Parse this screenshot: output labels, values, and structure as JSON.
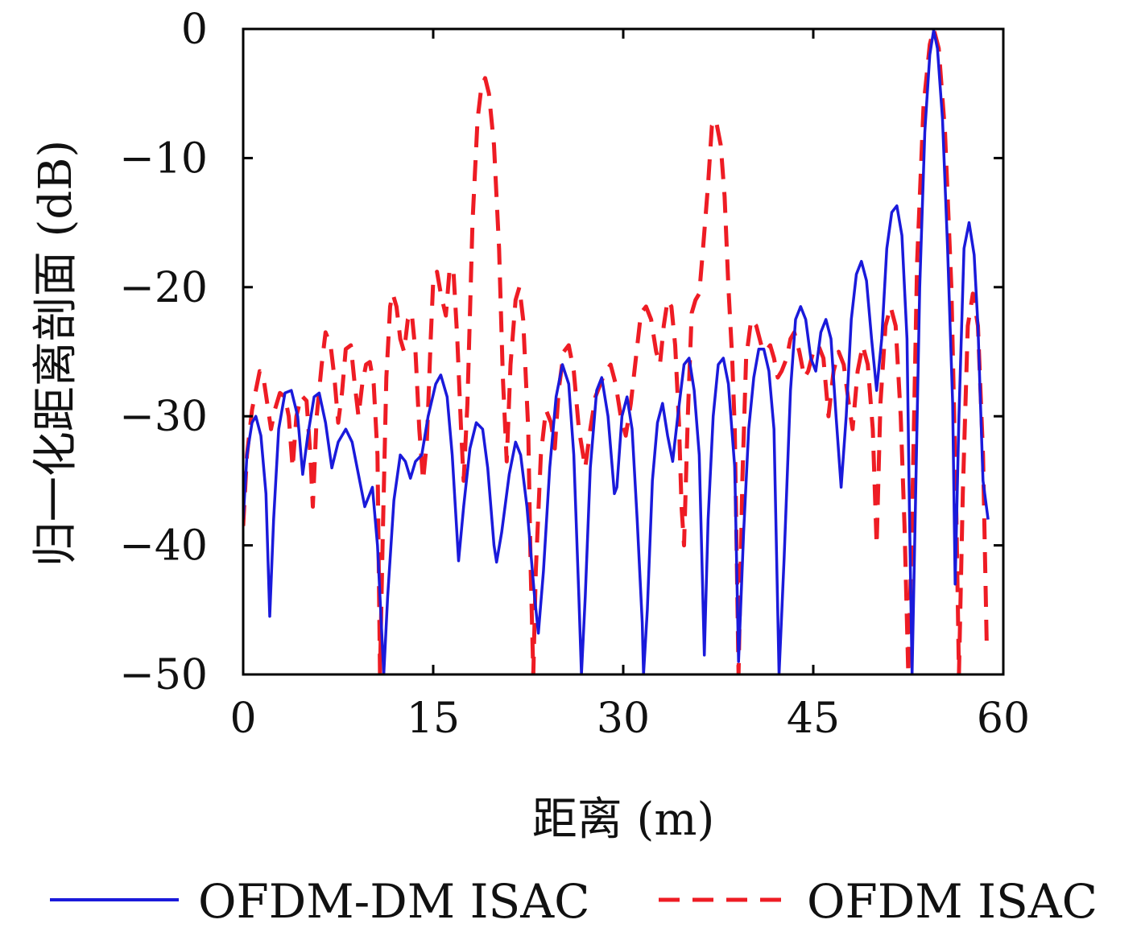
{
  "chart_data": {
    "type": "line",
    "xlabel": "距离 (m)",
    "ylabel": "归一化距离剖面 (dB)",
    "xlim": [
      0,
      60
    ],
    "ylim": [
      -50,
      0
    ],
    "x_ticks": [
      0,
      15,
      30,
      45,
      60
    ],
    "y_ticks": [
      0,
      -10,
      -20,
      -30,
      -40,
      -50
    ],
    "x_tick_labels": [
      "0",
      "15",
      "30",
      "45",
      "60"
    ],
    "y_tick_labels": [
      "0",
      "−10",
      "−20",
      "−30",
      "−40",
      "−50"
    ],
    "grid": false,
    "legend_position": "bottom",
    "series": [
      {
        "name": "OFDM-DM ISAC",
        "color": "#1a1adb",
        "style": "solid",
        "points": [
          [
            0,
            -38
          ],
          [
            0.3,
            -33
          ],
          [
            0.7,
            -30.5
          ],
          [
            1.0,
            -30
          ],
          [
            1.4,
            -31.5
          ],
          [
            1.8,
            -36
          ],
          [
            2.1,
            -45.5
          ],
          [
            2.4,
            -38
          ],
          [
            2.8,
            -31
          ],
          [
            3.3,
            -28.2
          ],
          [
            3.8,
            -28
          ],
          [
            4.3,
            -30
          ],
          [
            4.7,
            -34.5
          ],
          [
            5.1,
            -31.5
          ],
          [
            5.6,
            -28.5
          ],
          [
            6.0,
            -28.2
          ],
          [
            6.5,
            -30.5
          ],
          [
            7.0,
            -34
          ],
          [
            7.5,
            -32
          ],
          [
            8.1,
            -31
          ],
          [
            8.6,
            -32
          ],
          [
            9.2,
            -35
          ],
          [
            9.6,
            -37
          ],
          [
            10.2,
            -35.5
          ],
          [
            10.6,
            -40
          ],
          [
            10.9,
            -46
          ],
          [
            11.1,
            -50
          ],
          [
            11.4,
            -44
          ],
          [
            11.9,
            -36.5
          ],
          [
            12.4,
            -33
          ],
          [
            12.8,
            -33.5
          ],
          [
            13.2,
            -34.8
          ],
          [
            13.6,
            -33.5
          ],
          [
            14.1,
            -33
          ],
          [
            14.6,
            -30
          ],
          [
            15.2,
            -27.5
          ],
          [
            15.6,
            -26.8
          ],
          [
            16.1,
            -28.5
          ],
          [
            16.5,
            -33
          ],
          [
            17.0,
            -41.2
          ],
          [
            17.4,
            -37
          ],
          [
            17.9,
            -32.5
          ],
          [
            18.4,
            -30.5
          ],
          [
            18.9,
            -31
          ],
          [
            19.3,
            -34
          ],
          [
            19.8,
            -40
          ],
          [
            20.0,
            -41.3
          ],
          [
            20.4,
            -39
          ],
          [
            21.0,
            -34.5
          ],
          [
            21.5,
            -32
          ],
          [
            21.9,
            -33
          ],
          [
            22.4,
            -37
          ],
          [
            23.0,
            -44
          ],
          [
            23.3,
            -46.8
          ],
          [
            23.7,
            -42
          ],
          [
            24.2,
            -34
          ],
          [
            24.7,
            -28.5
          ],
          [
            25.2,
            -26
          ],
          [
            25.7,
            -27.5
          ],
          [
            26.1,
            -33
          ],
          [
            26.5,
            -44
          ],
          [
            26.7,
            -50
          ],
          [
            27.0,
            -44
          ],
          [
            27.4,
            -34
          ],
          [
            27.9,
            -28
          ],
          [
            28.3,
            -27
          ],
          [
            28.8,
            -30
          ],
          [
            29.3,
            -36
          ],
          [
            29.5,
            -35.5
          ],
          [
            29.9,
            -30
          ],
          [
            30.3,
            -28.5
          ],
          [
            30.7,
            -31
          ],
          [
            31.1,
            -38
          ],
          [
            31.5,
            -46
          ],
          [
            31.6,
            -50
          ],
          [
            31.9,
            -45
          ],
          [
            32.3,
            -35
          ],
          [
            32.7,
            -30.5
          ],
          [
            33.1,
            -29
          ],
          [
            33.5,
            -31.5
          ],
          [
            33.9,
            -33.5
          ],
          [
            34.3,
            -30
          ],
          [
            34.8,
            -26
          ],
          [
            35.2,
            -25.5
          ],
          [
            35.6,
            -28
          ],
          [
            36.0,
            -33
          ],
          [
            36.4,
            -48.5
          ],
          [
            36.7,
            -38
          ],
          [
            37.1,
            -30
          ],
          [
            37.5,
            -26
          ],
          [
            37.9,
            -25.5
          ],
          [
            38.3,
            -27.5
          ],
          [
            38.8,
            -34
          ],
          [
            39.1,
            -49
          ],
          [
            39.5,
            -39
          ],
          [
            39.9,
            -31
          ],
          [
            40.3,
            -27
          ],
          [
            40.7,
            -24.8
          ],
          [
            41.1,
            -24.8
          ],
          [
            41.5,
            -26.5
          ],
          [
            41.9,
            -31
          ],
          [
            42.3,
            -50
          ],
          [
            42.7,
            -41
          ],
          [
            43.2,
            -28
          ],
          [
            43.6,
            -22.5
          ],
          [
            44.0,
            -21.5
          ],
          [
            44.4,
            -22.5
          ],
          [
            44.8,
            -25.5
          ],
          [
            45.2,
            -26.5
          ],
          [
            45.6,
            -23.5
          ],
          [
            46.0,
            -22.5
          ],
          [
            46.4,
            -24
          ],
          [
            46.8,
            -30
          ],
          [
            47.2,
            -35.5
          ],
          [
            47.6,
            -30
          ],
          [
            48.0,
            -22.5
          ],
          [
            48.4,
            -19
          ],
          [
            48.8,
            -18
          ],
          [
            49.2,
            -19.5
          ],
          [
            49.6,
            -24
          ],
          [
            50.0,
            -28
          ],
          [
            50.4,
            -24
          ],
          [
            50.8,
            -17
          ],
          [
            51.2,
            -14.2
          ],
          [
            51.6,
            -13.7
          ],
          [
            52.0,
            -16
          ],
          [
            52.4,
            -24
          ],
          [
            52.6,
            -38
          ],
          [
            52.8,
            -50
          ],
          [
            53.0,
            -40
          ],
          [
            53.4,
            -20
          ],
          [
            53.8,
            -8
          ],
          [
            54.2,
            -2
          ],
          [
            54.5,
            -0.1
          ],
          [
            54.8,
            -1.5
          ],
          [
            55.2,
            -7
          ],
          [
            55.6,
            -17
          ],
          [
            56.0,
            -29
          ],
          [
            56.2,
            -43
          ],
          [
            56.5,
            -30
          ],
          [
            56.9,
            -17
          ],
          [
            57.3,
            -15
          ],
          [
            57.7,
            -17.5
          ],
          [
            58.0,
            -23
          ],
          [
            58.4,
            -35
          ],
          [
            58.8,
            -38
          ]
        ]
      },
      {
        "name": "OFDM ISAC",
        "color": "#ee1c24",
        "style": "dashed",
        "points": [
          [
            0,
            -38.5
          ],
          [
            0.3,
            -33
          ],
          [
            0.7,
            -29.5
          ],
          [
            1.0,
            -28
          ],
          [
            1.3,
            -26.5
          ],
          [
            1.6,
            -27
          ],
          [
            1.9,
            -29
          ],
          [
            2.2,
            -31
          ],
          [
            2.5,
            -29.5
          ],
          [
            2.9,
            -28.2
          ],
          [
            3.3,
            -28.5
          ],
          [
            3.6,
            -30
          ],
          [
            3.9,
            -34
          ],
          [
            4.2,
            -30
          ],
          [
            4.6,
            -28.4
          ],
          [
            5.0,
            -28.8
          ],
          [
            5.3,
            -33
          ],
          [
            5.5,
            -37
          ],
          [
            5.8,
            -30
          ],
          [
            6.2,
            -26
          ],
          [
            6.5,
            -23.5
          ],
          [
            6.9,
            -24.5
          ],
          [
            7.2,
            -27
          ],
          [
            7.5,
            -30.5
          ],
          [
            7.8,
            -28.2
          ],
          [
            8.1,
            -24.8
          ],
          [
            8.5,
            -24.5
          ],
          [
            8.8,
            -27.5
          ],
          [
            9.1,
            -30
          ],
          [
            9.4,
            -27.5
          ],
          [
            9.7,
            -26
          ],
          [
            10.0,
            -25.8
          ],
          [
            10.3,
            -27.5
          ],
          [
            10.6,
            -33
          ],
          [
            10.8,
            -50
          ],
          [
            11.0,
            -40
          ],
          [
            11.3,
            -27
          ],
          [
            11.6,
            -21.5
          ],
          [
            11.8,
            -20.5
          ],
          [
            12.1,
            -21.5
          ],
          [
            12.4,
            -24
          ],
          [
            12.7,
            -25
          ],
          [
            13.0,
            -22.5
          ],
          [
            13.3,
            -22
          ],
          [
            13.6,
            -25
          ],
          [
            13.9,
            -31
          ],
          [
            14.2,
            -35
          ],
          [
            14.5,
            -32
          ],
          [
            14.8,
            -24
          ],
          [
            15.0,
            -19.5
          ],
          [
            15.3,
            -18.8
          ],
          [
            15.6,
            -20.5
          ],
          [
            16.0,
            -22.2
          ],
          [
            16.3,
            -18.5
          ],
          [
            16.6,
            -18.8
          ],
          [
            16.9,
            -24
          ],
          [
            17.2,
            -31
          ],
          [
            17.4,
            -35
          ],
          [
            17.7,
            -29
          ],
          [
            18.1,
            -15
          ],
          [
            18.5,
            -7
          ],
          [
            18.8,
            -4.5
          ],
          [
            19.1,
            -3.8
          ],
          [
            19.4,
            -5
          ],
          [
            19.8,
            -9
          ],
          [
            20.2,
            -17
          ],
          [
            20.5,
            -27
          ],
          [
            20.8,
            -33.5
          ],
          [
            21.1,
            -26
          ],
          [
            21.5,
            -21
          ],
          [
            21.8,
            -20
          ],
          [
            22.1,
            -22.5
          ],
          [
            22.5,
            -31
          ],
          [
            22.7,
            -42
          ],
          [
            22.9,
            -50
          ],
          [
            23.1,
            -42
          ],
          [
            23.5,
            -33
          ],
          [
            23.9,
            -29.5
          ],
          [
            24.3,
            -30.5
          ],
          [
            24.6,
            -32.5
          ],
          [
            24.9,
            -28
          ],
          [
            25.3,
            -25
          ],
          [
            25.7,
            -24.5
          ],
          [
            26.1,
            -26.5
          ],
          [
            26.5,
            -31
          ],
          [
            27.0,
            -34
          ],
          [
            27.4,
            -31
          ],
          [
            27.8,
            -28.5
          ],
          [
            28.2,
            -27.5
          ],
          [
            28.6,
            -26.5
          ],
          [
            29.0,
            -26
          ],
          [
            29.4,
            -27.5
          ],
          [
            29.8,
            -30
          ],
          [
            30.2,
            -31.5
          ],
          [
            30.6,
            -29
          ],
          [
            31.0,
            -25.5
          ],
          [
            31.4,
            -22
          ],
          [
            31.8,
            -21.5
          ],
          [
            32.2,
            -22.5
          ],
          [
            32.6,
            -25
          ],
          [
            32.9,
            -26
          ],
          [
            33.2,
            -23
          ],
          [
            33.5,
            -21
          ],
          [
            33.8,
            -21.5
          ],
          [
            34.1,
            -24.5
          ],
          [
            34.4,
            -30.5
          ],
          [
            34.6,
            -37
          ],
          [
            34.8,
            -40
          ],
          [
            35.1,
            -30
          ],
          [
            35.4,
            -22
          ],
          [
            35.7,
            -21
          ],
          [
            36.0,
            -20.5
          ],
          [
            36.3,
            -17
          ],
          [
            36.7,
            -12
          ],
          [
            37.0,
            -7.5
          ],
          [
            37.3,
            -7
          ],
          [
            37.7,
            -9
          ],
          [
            38.0,
            -13
          ],
          [
            38.3,
            -20
          ],
          [
            38.6,
            -25.5
          ],
          [
            38.8,
            -31
          ],
          [
            39.1,
            -50
          ],
          [
            39.4,
            -35
          ],
          [
            39.7,
            -25.5
          ],
          [
            40.1,
            -22.5
          ],
          [
            40.5,
            -23
          ],
          [
            40.9,
            -24.5
          ],
          [
            41.2,
            -25
          ],
          [
            41.6,
            -24.5
          ],
          [
            41.9,
            -25.5
          ],
          [
            42.2,
            -27
          ],
          [
            42.5,
            -26.5
          ],
          [
            42.9,
            -25.5
          ],
          [
            43.2,
            -24
          ],
          [
            43.5,
            -23.5
          ],
          [
            43.9,
            -25
          ],
          [
            44.3,
            -27
          ],
          [
            44.6,
            -26.5
          ],
          [
            45.0,
            -25
          ],
          [
            45.4,
            -24.5
          ],
          [
            45.8,
            -25.5
          ],
          [
            46.2,
            -30
          ],
          [
            46.6,
            -26.5
          ],
          [
            47.0,
            -25
          ],
          [
            47.4,
            -26
          ],
          [
            47.8,
            -29
          ],
          [
            48.1,
            -31
          ],
          [
            48.5,
            -26.5
          ],
          [
            48.9,
            -24.5
          ],
          [
            49.3,
            -26
          ],
          [
            49.7,
            -31
          ],
          [
            50.0,
            -40
          ],
          [
            50.3,
            -29
          ],
          [
            50.7,
            -23
          ],
          [
            51.1,
            -21.5
          ],
          [
            51.5,
            -23
          ],
          [
            51.9,
            -30
          ],
          [
            52.2,
            -38.5
          ],
          [
            52.5,
            -50
          ],
          [
            52.8,
            -38
          ],
          [
            53.2,
            -18
          ],
          [
            53.7,
            -6
          ],
          [
            54.2,
            -1.2
          ],
          [
            54.5,
            0
          ],
          [
            54.9,
            -1.5
          ],
          [
            55.4,
            -8
          ],
          [
            55.9,
            -20
          ],
          [
            56.3,
            -38
          ],
          [
            56.5,
            -50
          ],
          [
            56.8,
            -36
          ],
          [
            57.2,
            -23
          ],
          [
            57.6,
            -20.5
          ],
          [
            58.0,
            -23
          ],
          [
            58.4,
            -33
          ],
          [
            58.7,
            -48
          ]
        ]
      }
    ]
  }
}
